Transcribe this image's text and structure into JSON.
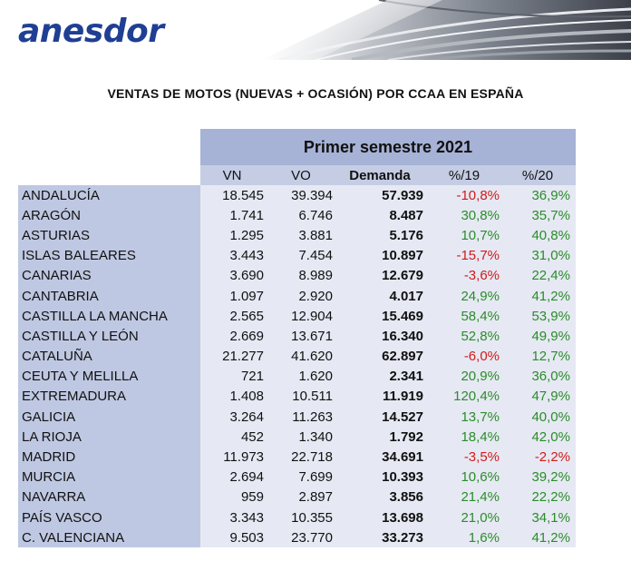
{
  "brand": "anesdor",
  "title": "VENTAS DE MOTOS (NUEVAS + OCASIÓN) POR CCAA EN ESPAÑA",
  "semester_label": "Primer semestre 2021",
  "columns": [
    "VN",
    "VO",
    "Demanda",
    "%/19",
    "%/20"
  ],
  "colors": {
    "negative": "#d11a1a",
    "positive": "#2a8c2a",
    "header_band": "#a6b2d6",
    "name_column": "#bfc8e2"
  },
  "rows": [
    {
      "name": "ANDALUCÍA",
      "vn": "18.545",
      "vo": "39.394",
      "demanda": "57.939",
      "p19": "-10,8%",
      "p20": "36,9%"
    },
    {
      "name": "ARAGÓN",
      "vn": "1.741",
      "vo": "6.746",
      "demanda": "8.487",
      "p19": "30,8%",
      "p20": "35,7%"
    },
    {
      "name": "ASTURIAS",
      "vn": "1.295",
      "vo": "3.881",
      "demanda": "5.176",
      "p19": "10,7%",
      "p20": "40,8%"
    },
    {
      "name": "ISLAS BALEARES",
      "vn": "3.443",
      "vo": "7.454",
      "demanda": "10.897",
      "p19": "-15,7%",
      "p20": "31,0%"
    },
    {
      "name": "CANARIAS",
      "vn": "3.690",
      "vo": "8.989",
      "demanda": "12.679",
      "p19": "-3,6%",
      "p20": "22,4%"
    },
    {
      "name": "CANTABRIA",
      "vn": "1.097",
      "vo": "2.920",
      "demanda": "4.017",
      "p19": "24,9%",
      "p20": "41,2%"
    },
    {
      "name": "CASTILLA LA MANCHA",
      "vn": "2.565",
      "vo": "12.904",
      "demanda": "15.469",
      "p19": "58,4%",
      "p20": "53,9%"
    },
    {
      "name": "CASTILLA Y LEÓN",
      "vn": "2.669",
      "vo": "13.671",
      "demanda": "16.340",
      "p19": "52,8%",
      "p20": "49,9%"
    },
    {
      "name": "CATALUÑA",
      "vn": "21.277",
      "vo": "41.620",
      "demanda": "62.897",
      "p19": "-6,0%",
      "p20": "12,7%"
    },
    {
      "name": "CEUTA Y MELILLA",
      "vn": "721",
      "vo": "1.620",
      "demanda": "2.341",
      "p19": "20,9%",
      "p20": "36,0%"
    },
    {
      "name": "EXTREMADURA",
      "vn": "1.408",
      "vo": "10.511",
      "demanda": "11.919",
      "p19": "120,4%",
      "p20": "47,9%"
    },
    {
      "name": "GALICIA",
      "vn": "3.264",
      "vo": "11.263",
      "demanda": "14.527",
      "p19": "13,7%",
      "p20": "40,0%"
    },
    {
      "name": "LA RIOJA",
      "vn": "452",
      "vo": "1.340",
      "demanda": "1.792",
      "p19": "18,4%",
      "p20": "42,0%"
    },
    {
      "name": "MADRID",
      "vn": "11.973",
      "vo": "22.718",
      "demanda": "34.691",
      "p19": "-3,5%",
      "p20": "-2,2%"
    },
    {
      "name": "MURCIA",
      "vn": "2.694",
      "vo": "7.699",
      "demanda": "10.393",
      "p19": "10,6%",
      "p20": "39,2%"
    },
    {
      "name": "NAVARRA",
      "vn": "959",
      "vo": "2.897",
      "demanda": "3.856",
      "p19": "21,4%",
      "p20": "22,2%"
    },
    {
      "name": "PAÍS VASCO",
      "vn": "3.343",
      "vo": "10.355",
      "demanda": "13.698",
      "p19": "21,0%",
      "p20": "34,1%"
    },
    {
      "name": "C. VALENCIANA",
      "vn": "9.503",
      "vo": "23.770",
      "demanda": "33.273",
      "p19": "1,6%",
      "p20": "41,2%"
    }
  ]
}
